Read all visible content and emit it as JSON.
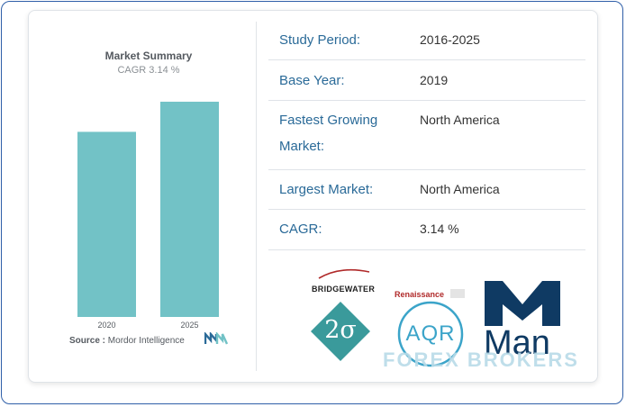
{
  "chart": {
    "title": "Market Summary",
    "subtitle": "CAGR 3.14 %",
    "source_label": "Source :",
    "source_value": "Mordor Intelligence"
  },
  "chart_data": {
    "type": "bar",
    "categories": [
      "2020",
      "2025"
    ],
    "values": [
      0.86,
      1.0
    ],
    "title": "Market Summary",
    "subtitle": "CAGR 3.14 %",
    "xlabel": "",
    "ylabel": "",
    "ylim": [
      0,
      1.05
    ],
    "bar_color": "#72c2c6",
    "grid": false
  },
  "table": {
    "rows": [
      {
        "label": "Study Period:",
        "value": "2016-2025"
      },
      {
        "label": "Base Year:",
        "value": "2019"
      },
      {
        "label": "Fastest Growing Market:",
        "value": "North America"
      },
      {
        "label": "Largest Market:",
        "value": "North America"
      },
      {
        "label": "CAGR:",
        "value": "3.14 %"
      }
    ]
  },
  "logos": {
    "bridgewater": "BRIDGEWATER",
    "renaissance": "Renaissance",
    "two_sigma": "2σ",
    "aqr": "AQR",
    "man": "Man"
  },
  "watermark": "FOREX BROKERS",
  "colors": {
    "accent": "#2a6a98",
    "bar": "#72c2c6",
    "frame": "#2f5fa8",
    "man_navy": "#0f3a63",
    "two_sigma": "#3a9a9b"
  }
}
